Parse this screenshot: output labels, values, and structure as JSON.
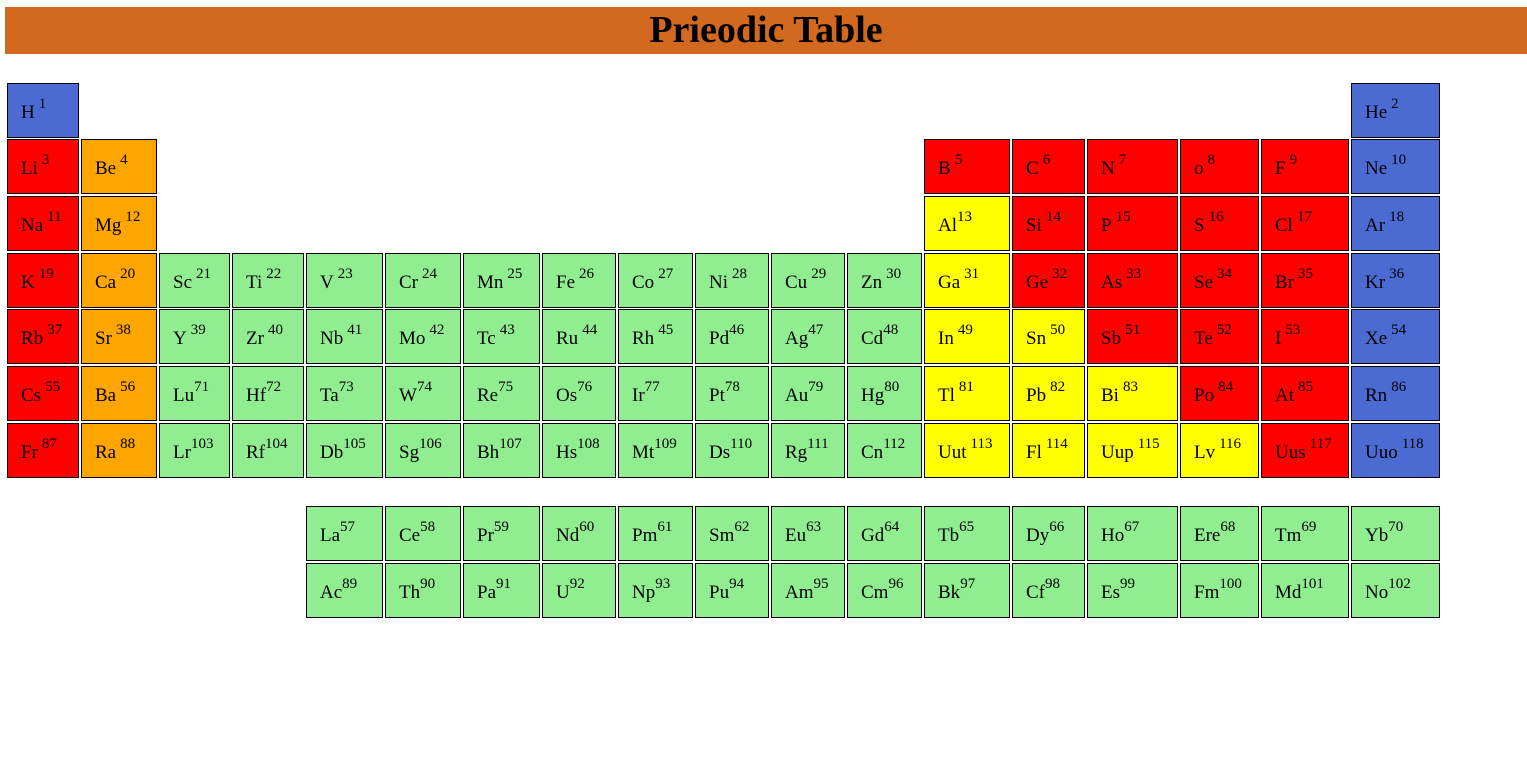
{
  "title": "Prieodic Table",
  "colors": {
    "header": "#d2691e",
    "nonmetal_blue": "#4b6bd3",
    "red": "#ff0000",
    "orange": "#ffa500",
    "green": "#90ee90",
    "yellow": "#ffff00"
  },
  "main_table": [
    [
      {
        "s": "H",
        "n": "1",
        "c": "blue",
        "gap": true
      },
      {
        "s": "He",
        "n": "2",
        "c": "blue",
        "gap": true
      }
    ],
    [
      {
        "s": "Li",
        "n": "3",
        "c": "red",
        "gap": true
      },
      {
        "s": "Be",
        "n": "4",
        "c": "orange",
        "gap": true
      },
      {
        "s": "B",
        "n": "5",
        "c": "red",
        "gap": true
      },
      {
        "s": "C",
        "n": "6",
        "c": "red",
        "gap": true
      },
      {
        "s": "N",
        "n": "7",
        "c": "red",
        "gap": true
      },
      {
        "s": "o",
        "n": "8",
        "c": "red",
        "gap": true
      },
      {
        "s": "F",
        "n": "9",
        "c": "red",
        "gap": true
      },
      {
        "s": "Ne",
        "n": "10",
        "c": "blue",
        "gap": true
      }
    ],
    [
      {
        "s": "Na",
        "n": "11",
        "c": "red",
        "gap": true
      },
      {
        "s": "Mg",
        "n": "12",
        "c": "orange",
        "gap": true
      },
      {
        "s": "Al",
        "n": "13",
        "c": "yellow",
        "gap": false
      },
      {
        "s": "Si",
        "n": "14",
        "c": "red",
        "gap": true
      },
      {
        "s": "P",
        "n": "15",
        "c": "red",
        "gap": true
      },
      {
        "s": "S",
        "n": "16",
        "c": "red",
        "gap": true
      },
      {
        "s": "Cl",
        "n": "17",
        "c": "red",
        "gap": true
      },
      {
        "s": "Ar",
        "n": "18",
        "c": "blue",
        "gap": true
      }
    ],
    [
      {
        "s": "K",
        "n": "19",
        "c": "red",
        "gap": true
      },
      {
        "s": "Ca",
        "n": "20",
        "c": "orange",
        "gap": true
      },
      {
        "s": "Sc",
        "n": "21",
        "c": "green",
        "gap": true
      },
      {
        "s": "Ti",
        "n": "22",
        "c": "green",
        "gap": true
      },
      {
        "s": "V",
        "n": "23",
        "c": "green",
        "gap": true
      },
      {
        "s": "Cr",
        "n": "24",
        "c": "green",
        "gap": true
      },
      {
        "s": "Mn",
        "n": "25",
        "c": "green",
        "gap": true
      },
      {
        "s": "Fe",
        "n": "26",
        "c": "green",
        "gap": true
      },
      {
        "s": "Co",
        "n": "27",
        "c": "green",
        "gap": true
      },
      {
        "s": "Ni",
        "n": "28",
        "c": "green",
        "gap": true
      },
      {
        "s": "Cu",
        "n": "29",
        "c": "green",
        "gap": true
      },
      {
        "s": "Zn",
        "n": "30",
        "c": "green",
        "gap": true
      },
      {
        "s": "Ga",
        "n": "31",
        "c": "yellow",
        "gap": true
      },
      {
        "s": "Ge",
        "n": "32",
        "c": "red",
        "gap": true
      },
      {
        "s": "As",
        "n": "33",
        "c": "red",
        "gap": true
      },
      {
        "s": "Se",
        "n": "34",
        "c": "red",
        "gap": true
      },
      {
        "s": "Br",
        "n": "35",
        "c": "red",
        "gap": true
      },
      {
        "s": "Kr",
        "n": "36",
        "c": "blue",
        "gap": true
      }
    ],
    [
      {
        "s": "Rb",
        "n": "37",
        "c": "red",
        "gap": true
      },
      {
        "s": "Sr",
        "n": "38",
        "c": "orange",
        "gap": true
      },
      {
        "s": "Y",
        "n": "39",
        "c": "green",
        "gap": true
      },
      {
        "s": "Zr",
        "n": "40",
        "c": "green",
        "gap": true
      },
      {
        "s": "Nb",
        "n": "41",
        "c": "green",
        "gap": true
      },
      {
        "s": "Mo",
        "n": "42",
        "c": "green",
        "gap": true
      },
      {
        "s": "Tc",
        "n": "43",
        "c": "green",
        "gap": true
      },
      {
        "s": "Ru",
        "n": "44",
        "c": "green",
        "gap": true
      },
      {
        "s": "Rh",
        "n": "45",
        "c": "green",
        "gap": true
      },
      {
        "s": "Pd",
        "n": "46",
        "c": "green",
        "gap": false
      },
      {
        "s": "Ag",
        "n": "47",
        "c": "green",
        "gap": false
      },
      {
        "s": "Cd",
        "n": "48",
        "c": "green",
        "gap": false
      },
      {
        "s": "In",
        "n": "49",
        "c": "yellow",
        "gap": true
      },
      {
        "s": "Sn",
        "n": "50",
        "c": "yellow",
        "gap": true
      },
      {
        "s": "Sb",
        "n": "51",
        "c": "red",
        "gap": true
      },
      {
        "s": "Te",
        "n": "52",
        "c": "red",
        "gap": true
      },
      {
        "s": "I",
        "n": "53",
        "c": "red",
        "gap": true
      },
      {
        "s": "Xe",
        "n": "54",
        "c": "blue",
        "gap": true
      }
    ],
    [
      {
        "s": "Cs",
        "n": "55",
        "c": "red",
        "gap": true
      },
      {
        "s": "Ba",
        "n": "56",
        "c": "orange",
        "gap": true
      },
      {
        "s": "Lu",
        "n": "71",
        "c": "green",
        "gap": false
      },
      {
        "s": "Hf",
        "n": "72",
        "c": "green",
        "gap": false
      },
      {
        "s": "Ta",
        "n": "73",
        "c": "green",
        "gap": false
      },
      {
        "s": "W",
        "n": "74",
        "c": "green",
        "gap": false
      },
      {
        "s": "Re",
        "n": "75",
        "c": "green",
        "gap": false
      },
      {
        "s": "Os",
        "n": "76",
        "c": "green",
        "gap": false
      },
      {
        "s": "Ir",
        "n": "77",
        "c": "green",
        "gap": false
      },
      {
        "s": "Pt",
        "n": "78",
        "c": "green",
        "gap": false
      },
      {
        "s": "Au",
        "n": "79",
        "c": "green",
        "gap": false
      },
      {
        "s": "Hg",
        "n": "80",
        "c": "green",
        "gap": false
      },
      {
        "s": "Tl",
        "n": "81",
        "c": "yellow",
        "gap": true
      },
      {
        "s": "Pb",
        "n": "82",
        "c": "yellow",
        "gap": true
      },
      {
        "s": "Bi",
        "n": "83",
        "c": "yellow",
        "gap": true
      },
      {
        "s": "Po",
        "n": "84",
        "c": "red",
        "gap": true
      },
      {
        "s": "At",
        "n": "85",
        "c": "red",
        "gap": true
      },
      {
        "s": "Rn",
        "n": "86",
        "c": "blue",
        "gap": true
      }
    ],
    [
      {
        "s": "Fr",
        "n": "87",
        "c": "red",
        "gap": true
      },
      {
        "s": "Ra",
        "n": "88",
        "c": "orange",
        "gap": true
      },
      {
        "s": "Lr",
        "n": "103",
        "c": "green",
        "gap": false
      },
      {
        "s": "Rf",
        "n": "104",
        "c": "green",
        "gap": false
      },
      {
        "s": "Db",
        "n": "105",
        "c": "green",
        "gap": false
      },
      {
        "s": "Sg",
        "n": "106",
        "c": "green",
        "gap": false
      },
      {
        "s": "Bh",
        "n": "107",
        "c": "green",
        "gap": false
      },
      {
        "s": "Hs",
        "n": "108",
        "c": "green",
        "gap": false
      },
      {
        "s": "Mt",
        "n": "109",
        "c": "green",
        "gap": false
      },
      {
        "s": "Ds",
        "n": "110",
        "c": "green",
        "gap": false
      },
      {
        "s": "Rg",
        "n": "111",
        "c": "green",
        "gap": false
      },
      {
        "s": "Cn",
        "n": "112",
        "c": "green",
        "gap": false
      },
      {
        "s": "Uut",
        "n": "113",
        "c": "yellow",
        "gap": true
      },
      {
        "s": "Fl",
        "n": "114",
        "c": "yellow",
        "gap": true
      },
      {
        "s": "Uup",
        "n": "115",
        "c": "yellow",
        "gap": true
      },
      {
        "s": "Lv",
        "n": "116",
        "c": "yellow",
        "gap": true
      },
      {
        "s": "Uus",
        "n": "117",
        "c": "red",
        "gap": true
      },
      {
        "s": "Uuo",
        "n": "118",
        "c": "blue",
        "gap": true
      }
    ]
  ],
  "lanthanides": [
    {
      "s": "La",
      "n": "57"
    },
    {
      "s": "Ce",
      "n": "58"
    },
    {
      "s": "Pr",
      "n": "59"
    },
    {
      "s": "Nd",
      "n": "60"
    },
    {
      "s": "Pm",
      "n": "61"
    },
    {
      "s": "Sm",
      "n": "62"
    },
    {
      "s": "Eu",
      "n": "63"
    },
    {
      "s": "Gd",
      "n": "64"
    },
    {
      "s": "Tb",
      "n": "65"
    },
    {
      "s": "Dy",
      "n": "66"
    },
    {
      "s": "Ho",
      "n": "67"
    },
    {
      "s": "Ere",
      "n": "68"
    },
    {
      "s": "Tm",
      "n": "69"
    },
    {
      "s": "Yb",
      "n": "70"
    }
  ],
  "actinides": [
    {
      "s": "Ac",
      "n": "89"
    },
    {
      "s": "Th",
      "n": "90"
    },
    {
      "s": "Pa",
      "n": "91"
    },
    {
      "s": "U",
      "n": "92"
    },
    {
      "s": "Np",
      "n": "93"
    },
    {
      "s": "Pu",
      "n": "94"
    },
    {
      "s": "Am",
      "n": "95"
    },
    {
      "s": "Cm",
      "n": "96"
    },
    {
      "s": "Bk",
      "n": "97"
    },
    {
      "s": "Cf",
      "n": "98"
    },
    {
      "s": "Es",
      "n": "99"
    },
    {
      "s": "Fm",
      "n": "100"
    },
    {
      "s": "Md",
      "n": "101"
    },
    {
      "s": "No",
      "n": "102"
    }
  ]
}
